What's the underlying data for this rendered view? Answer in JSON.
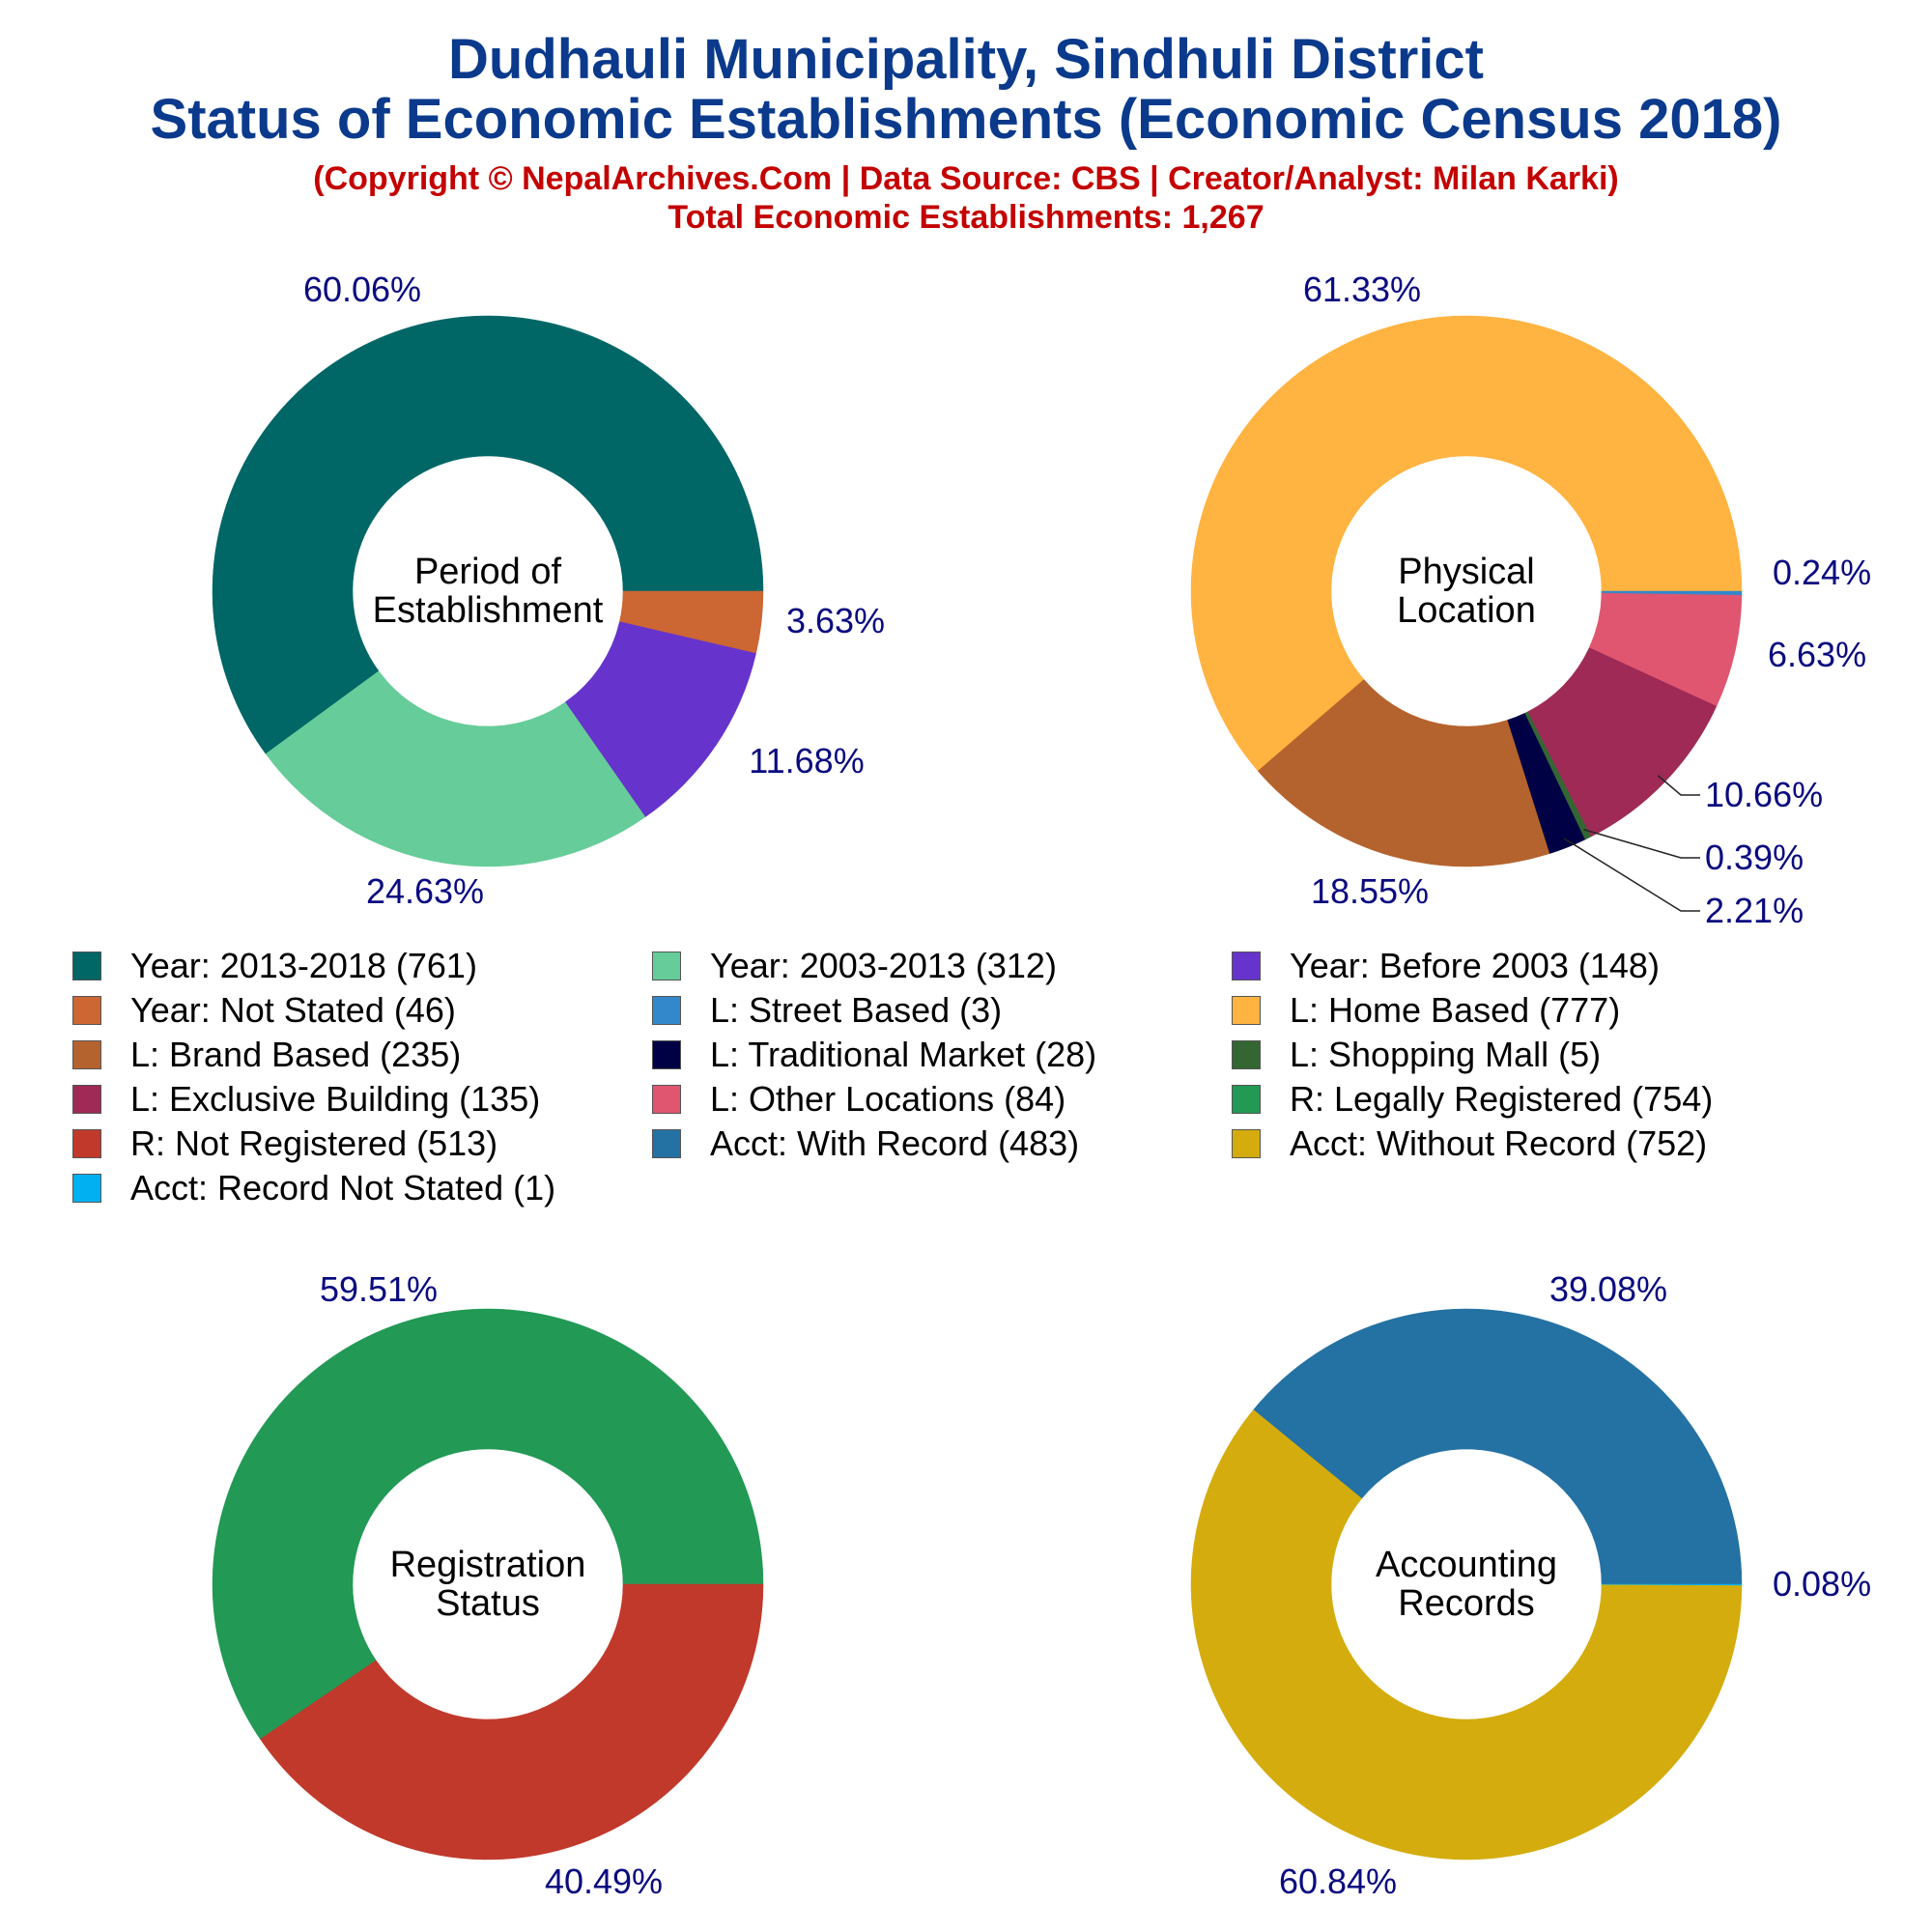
{
  "titles": {
    "line1": "Dudhauli Municipality, Sindhuli District",
    "line2": "Status of Economic Establishments (Economic Census 2018)",
    "line3": "(Copyright © NepalArchives.Com | Data Source: CBS | Creator/Analyst: Milan Karki)",
    "line4": "Total Economic Establishments: 1,267"
  },
  "chart_data": [
    {
      "type": "pie",
      "center_label": [
        "Period of",
        "Establishment"
      ],
      "slices": [
        {
          "name": "Year: 2013-2018",
          "value": 761,
          "label": "60.06%",
          "color": "#006666"
        },
        {
          "name": "Year: Not Stated",
          "value": 46,
          "label": "3.63%",
          "color": "#cc6633"
        },
        {
          "name": "Year: Before 2003",
          "value": 148,
          "label": "11.68%",
          "color": "#6633cc"
        },
        {
          "name": "Year: 2003-2013",
          "value": 312,
          "label": "24.63%",
          "color": "#66cc99"
        }
      ]
    },
    {
      "type": "pie",
      "center_label": [
        "Physical",
        "Location"
      ],
      "slices": [
        {
          "name": "L: Home Based",
          "value": 777,
          "label": "61.33%",
          "color": "#ffb340"
        },
        {
          "name": "L: Street Based",
          "value": 3,
          "label": "0.24%",
          "color": "#3388cc"
        },
        {
          "name": "L: Other Locations",
          "value": 84,
          "label": "6.63%",
          "color": "#e05570"
        },
        {
          "name": "L: Exclusive Building",
          "value": 135,
          "label": "10.66%",
          "color": "#9e2a55"
        },
        {
          "name": "L: Shopping Mall",
          "value": 5,
          "label": "0.39%",
          "color": "#336633"
        },
        {
          "name": "L: Traditional Market",
          "value": 28,
          "label": "2.21%",
          "color": "#000044"
        },
        {
          "name": "L: Brand Based",
          "value": 235,
          "label": "18.55%",
          "color": "#b5632e"
        }
      ]
    },
    {
      "type": "pie",
      "center_label": [
        "Registration",
        "Status"
      ],
      "slices": [
        {
          "name": "R: Legally Registered",
          "value": 754,
          "label": "59.51%",
          "color": "#229955"
        },
        {
          "name": "R: Not Registered",
          "value": 513,
          "label": "40.49%",
          "color": "#c0392b"
        }
      ]
    },
    {
      "type": "pie",
      "center_label": [
        "Accounting",
        "Records"
      ],
      "slices": [
        {
          "name": "Acct: With Record",
          "value": 483,
          "label": "39.08%",
          "color": "#2471a3"
        },
        {
          "name": "Acct: Record Not Stated",
          "value": 1,
          "label": "0.08%",
          "color": "#00b0f0"
        },
        {
          "name": "Acct: Without Record",
          "value": 752,
          "label": "60.84%",
          "color": "#d4ac0d"
        }
      ]
    }
  ],
  "legend": [
    {
      "label": "Year: 2013-2018 (761)",
      "color": "#006666"
    },
    {
      "label": "Year: 2003-2013 (312)",
      "color": "#66cc99"
    },
    {
      "label": "Year: Before 2003 (148)",
      "color": "#6633cc"
    },
    {
      "label": "Year: Not Stated (46)",
      "color": "#cc6633"
    },
    {
      "label": "L: Street Based (3)",
      "color": "#3388cc"
    },
    {
      "label": "L: Home Based (777)",
      "color": "#ffb340"
    },
    {
      "label": "L: Brand Based (235)",
      "color": "#b5632e"
    },
    {
      "label": "L: Traditional Market (28)",
      "color": "#000044"
    },
    {
      "label": "L: Shopping Mall (5)",
      "color": "#336633"
    },
    {
      "label": "L: Exclusive Building (135)",
      "color": "#9e2a55"
    },
    {
      "label": "L: Other Locations (84)",
      "color": "#e05570"
    },
    {
      "label": "R: Legally Registered (754)",
      "color": "#229955"
    },
    {
      "label": "R: Not Registered (513)",
      "color": "#c0392b"
    },
    {
      "label": "Acct: With Record (483)",
      "color": "#2471a3"
    },
    {
      "label": "Acct: Without Record (752)",
      "color": "#d4ac0d"
    },
    {
      "label": "Acct: Record Not Stated (1)",
      "color": "#00b0f0"
    }
  ]
}
